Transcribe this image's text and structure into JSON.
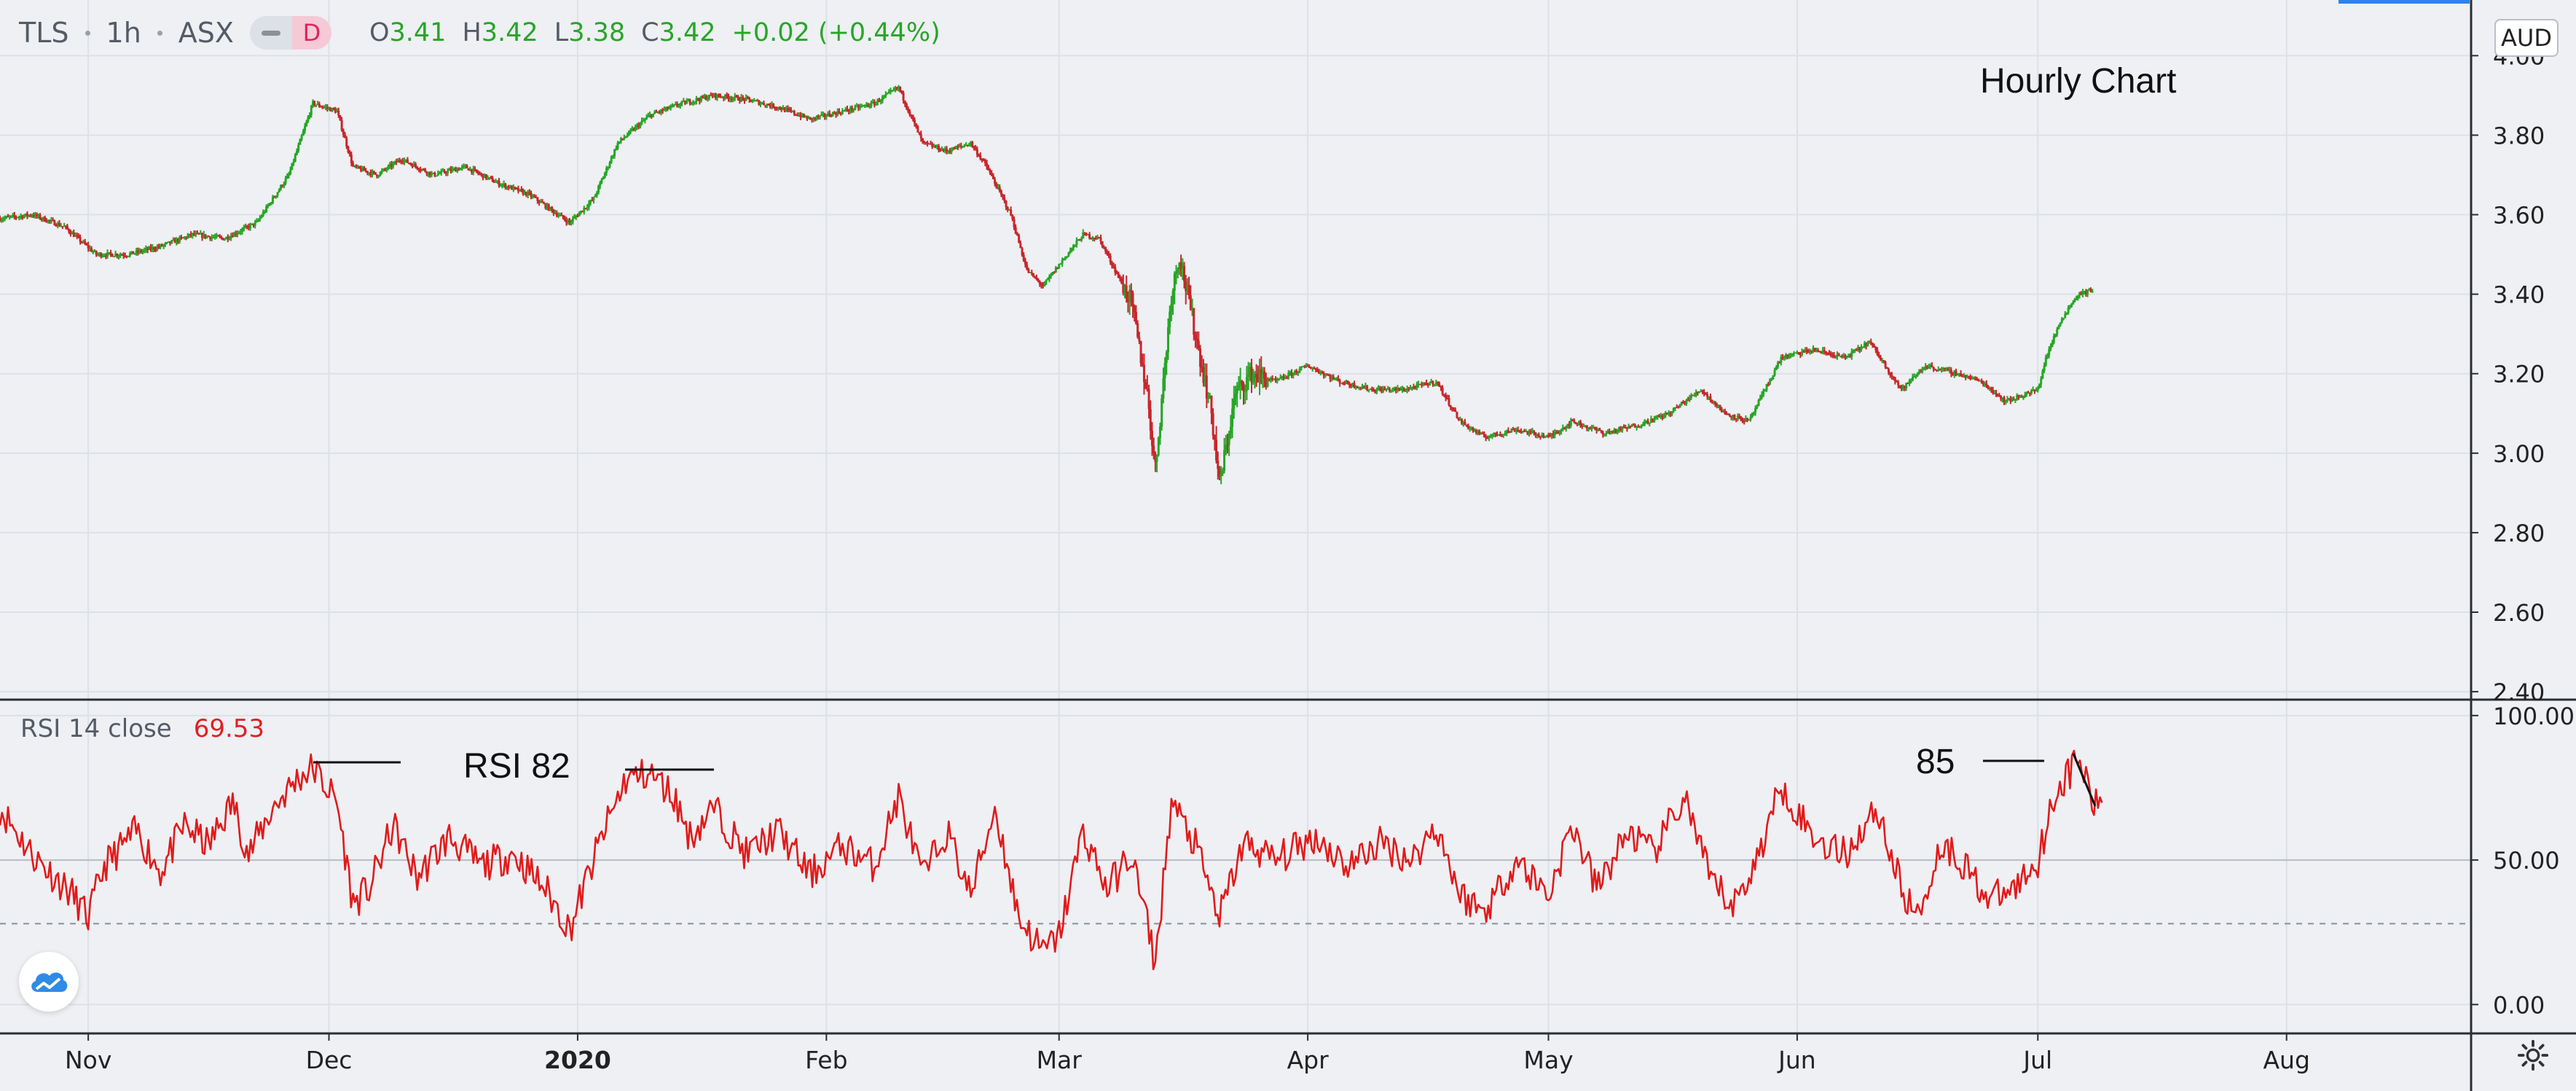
{
  "header": {
    "symbol": "TLS",
    "interval": "1h",
    "exchange": "ASX",
    "mode_button": "D",
    "ohlc": {
      "open_label": "O",
      "open": "3.41",
      "high_label": "H",
      "high": "3.42",
      "low_label": "L",
      "low": "3.38",
      "close_label": "C",
      "close": "3.42",
      "change": "+0.02 (+0.44%)"
    }
  },
  "currency_button": "AUD",
  "rsi_header": {
    "label": "RSI 14 close",
    "value": "69.53"
  },
  "annotations": {
    "title": "Hourly Chart",
    "rsi_82": "RSI 82",
    "rsi_85": "85"
  },
  "colors": {
    "up": "#26a626",
    "down": "#c8262b",
    "rsi_line": "#e01b1b",
    "grid": "#dde0e6",
    "background": "#eef0f4"
  },
  "icons": {
    "logo": "tradingview-cloud-icon",
    "settings": "gear-icon"
  },
  "chart_data": [
    {
      "type": "candlestick",
      "title": "",
      "ylabel": "",
      "ylim": [
        2.38,
        4.14
      ],
      "yticks": [
        "2.40",
        "2.60",
        "2.80",
        "3.00",
        "3.20",
        "3.40",
        "3.60",
        "3.80",
        "4.00",
        "4.20"
      ],
      "x_axis": {
        "start": "2019-10-21",
        "end": "2020-08-24",
        "tick_labels": [
          {
            "date": "2019-11-01",
            "label": "Nov",
            "bold": false
          },
          {
            "date": "2019-12-01",
            "label": "Dec",
            "bold": false
          },
          {
            "date": "2020-01-01",
            "label": "2020",
            "bold": true
          },
          {
            "date": "2020-02-01",
            "label": "Feb",
            "bold": false
          },
          {
            "date": "2020-03-01",
            "label": "Mar",
            "bold": false
          },
          {
            "date": "2020-04-01",
            "label": "Apr",
            "bold": false
          },
          {
            "date": "2020-05-01",
            "label": "May",
            "bold": false
          },
          {
            "date": "2020-06-01",
            "label": "Jun",
            "bold": false
          },
          {
            "date": "2020-07-01",
            "label": "Jul",
            "bold": false
          },
          {
            "date": "2020-08-01",
            "label": "Aug",
            "bold": false
          }
        ]
      },
      "series": [
        {
          "price_path": [
            [
              "2019-10-21",
              3.59
            ],
            [
              "2019-10-25",
              3.6
            ],
            [
              "2019-10-29",
              3.57
            ],
            [
              "2019-11-02",
              3.5
            ],
            [
              "2019-11-06",
              3.5
            ],
            [
              "2019-11-10",
              3.52
            ],
            [
              "2019-11-14",
              3.55
            ],
            [
              "2019-11-18",
              3.54
            ],
            [
              "2019-11-22",
              3.58
            ],
            [
              "2019-11-26",
              3.7
            ],
            [
              "2019-11-29",
              3.88
            ],
            [
              "2019-12-02",
              3.86
            ],
            [
              "2019-12-04",
              3.72
            ],
            [
              "2019-12-07",
              3.7
            ],
            [
              "2019-12-10",
              3.74
            ],
            [
              "2019-12-14",
              3.7
            ],
            [
              "2019-12-18",
              3.72
            ],
            [
              "2019-12-22",
              3.68
            ],
            [
              "2019-12-26",
              3.65
            ],
            [
              "2019-12-31",
              3.58
            ],
            [
              "2020-01-03",
              3.64
            ],
            [
              "2020-01-06",
              3.78
            ],
            [
              "2020-01-10",
              3.85
            ],
            [
              "2020-01-14",
              3.88
            ],
            [
              "2020-01-18",
              3.9
            ],
            [
              "2020-01-22",
              3.89
            ],
            [
              "2020-01-26",
              3.87
            ],
            [
              "2020-01-30",
              3.84
            ],
            [
              "2020-02-03",
              3.86
            ],
            [
              "2020-02-07",
              3.88
            ],
            [
              "2020-02-10",
              3.92
            ],
            [
              "2020-02-13",
              3.78
            ],
            [
              "2020-02-16",
              3.76
            ],
            [
              "2020-02-19",
              3.78
            ],
            [
              "2020-02-21",
              3.72
            ],
            [
              "2020-02-24",
              3.6
            ],
            [
              "2020-02-26",
              3.46
            ],
            [
              "2020-02-28",
              3.42
            ],
            [
              "2020-03-02",
              3.5
            ],
            [
              "2020-03-04",
              3.55
            ],
            [
              "2020-03-06",
              3.54
            ],
            [
              "2020-03-08",
              3.46
            ],
            [
              "2020-03-10",
              3.38
            ],
            [
              "2020-03-12",
              3.15
            ],
            [
              "2020-03-13",
              2.96
            ],
            [
              "2020-03-15",
              3.4
            ],
            [
              "2020-03-16",
              3.5
            ],
            [
              "2020-03-18",
              3.3
            ],
            [
              "2020-03-20",
              3.1
            ],
            [
              "2020-03-21",
              2.92
            ],
            [
              "2020-03-23",
              3.15
            ],
            [
              "2020-03-25",
              3.2
            ],
            [
              "2020-03-28",
              3.18
            ],
            [
              "2020-04-01",
              3.22
            ],
            [
              "2020-04-05",
              3.18
            ],
            [
              "2020-04-09",
              3.16
            ],
            [
              "2020-04-13",
              3.16
            ],
            [
              "2020-04-17",
              3.18
            ],
            [
              "2020-04-20",
              3.08
            ],
            [
              "2020-04-23",
              3.04
            ],
            [
              "2020-04-27",
              3.06
            ],
            [
              "2020-05-01",
              3.04
            ],
            [
              "2020-05-04",
              3.08
            ],
            [
              "2020-05-08",
              3.05
            ],
            [
              "2020-05-12",
              3.07
            ],
            [
              "2020-05-16",
              3.1
            ],
            [
              "2020-05-20",
              3.16
            ],
            [
              "2020-05-23",
              3.1
            ],
            [
              "2020-05-26",
              3.08
            ],
            [
              "2020-05-30",
              3.24
            ],
            [
              "2020-06-03",
              3.26
            ],
            [
              "2020-06-07",
              3.24
            ],
            [
              "2020-06-10",
              3.28
            ],
            [
              "2020-06-14",
              3.16
            ],
            [
              "2020-06-17",
              3.22
            ],
            [
              "2020-06-21",
              3.2
            ],
            [
              "2020-06-24",
              3.18
            ],
            [
              "2020-06-27",
              3.13
            ],
            [
              "2020-07-01",
              3.16
            ],
            [
              "2020-07-02",
              3.24
            ],
            [
              "2020-07-04",
              3.34
            ],
            [
              "2020-07-06",
              3.4
            ],
            [
              "2020-07-08",
              3.41
            ]
          ]
        }
      ]
    },
    {
      "type": "line",
      "title": "",
      "ylabel": "",
      "ylim": [
        -10,
        105
      ],
      "yticks": [
        "0.00",
        "50.00",
        "100.00"
      ],
      "reference_lines": [
        50,
        28
      ],
      "series": [
        {
          "path": [
            [
              "2019-10-21",
              68
            ],
            [
              "2019-10-25",
              52
            ],
            [
              "2019-10-30",
              38
            ],
            [
              "2019-11-01",
              30
            ],
            [
              "2019-11-03",
              48
            ],
            [
              "2019-11-07",
              60
            ],
            [
              "2019-11-10",
              46
            ],
            [
              "2019-11-13",
              62
            ],
            [
              "2019-11-16",
              55
            ],
            [
              "2019-11-19",
              70
            ],
            [
              "2019-11-21",
              52
            ],
            [
              "2019-11-24",
              68
            ],
            [
              "2019-11-27",
              78
            ],
            [
              "2019-11-29",
              82
            ],
            [
              "2019-12-02",
              70
            ],
            [
              "2019-12-04",
              35
            ],
            [
              "2019-12-06",
              40
            ],
            [
              "2019-12-09",
              62
            ],
            [
              "2019-12-12",
              44
            ],
            [
              "2019-12-16",
              58
            ],
            [
              "2019-12-20",
              48
            ],
            [
              "2019-12-24",
              52
            ],
            [
              "2019-12-28",
              40
            ],
            [
              "2019-12-31",
              26
            ],
            [
              "2020-01-04",
              58
            ],
            [
              "2020-01-07",
              78
            ],
            [
              "2020-01-10",
              80
            ],
            [
              "2020-01-13",
              72
            ],
            [
              "2020-01-15",
              58
            ],
            [
              "2020-01-18",
              68
            ],
            [
              "2020-01-22",
              52
            ],
            [
              "2020-01-26",
              60
            ],
            [
              "2020-01-30",
              45
            ],
            [
              "2020-02-03",
              55
            ],
            [
              "2020-02-07",
              48
            ],
            [
              "2020-02-10",
              72
            ],
            [
              "2020-02-13",
              44
            ],
            [
              "2020-02-16",
              60
            ],
            [
              "2020-02-19",
              38
            ],
            [
              "2020-02-22",
              68
            ],
            [
              "2020-02-25",
              30
            ],
            [
              "2020-02-28",
              18
            ],
            [
              "2020-03-01",
              24
            ],
            [
              "2020-03-04",
              60
            ],
            [
              "2020-03-07",
              40
            ],
            [
              "2020-03-10",
              52
            ],
            [
              "2020-03-12",
              28
            ],
            [
              "2020-03-13",
              14
            ],
            [
              "2020-03-15",
              70
            ],
            [
              "2020-03-18",
              55
            ],
            [
              "2020-03-21",
              30
            ],
            [
              "2020-03-24",
              56
            ],
            [
              "2020-03-28",
              50
            ],
            [
              "2020-04-02",
              58
            ],
            [
              "2020-04-06",
              48
            ],
            [
              "2020-04-10",
              56
            ],
            [
              "2020-04-14",
              50
            ],
            [
              "2020-04-17",
              62
            ],
            [
              "2020-04-20",
              38
            ],
            [
              "2020-04-23",
              32
            ],
            [
              "2020-04-27",
              50
            ],
            [
              "2020-05-01",
              38
            ],
            [
              "2020-05-04",
              62
            ],
            [
              "2020-05-07",
              40
            ],
            [
              "2020-05-11",
              60
            ],
            [
              "2020-05-14",
              52
            ],
            [
              "2020-05-18",
              72
            ],
            [
              "2020-05-21",
              44
            ],
            [
              "2020-05-24",
              34
            ],
            [
              "2020-05-27",
              50
            ],
            [
              "2020-05-30",
              76
            ],
            [
              "2020-06-03",
              58
            ],
            [
              "2020-06-07",
              52
            ],
            [
              "2020-06-11",
              68
            ],
            [
              "2020-06-14",
              40
            ],
            [
              "2020-06-16",
              30
            ],
            [
              "2020-06-19",
              56
            ],
            [
              "2020-06-22",
              48
            ],
            [
              "2020-06-25",
              36
            ],
            [
              "2020-06-28",
              40
            ],
            [
              "2020-07-01",
              50
            ],
            [
              "2020-07-03",
              72
            ],
            [
              "2020-07-06",
              85
            ],
            [
              "2020-07-07",
              78
            ],
            [
              "2020-07-08",
              68
            ],
            [
              "2020-07-09",
              70
            ]
          ]
        }
      ]
    }
  ]
}
